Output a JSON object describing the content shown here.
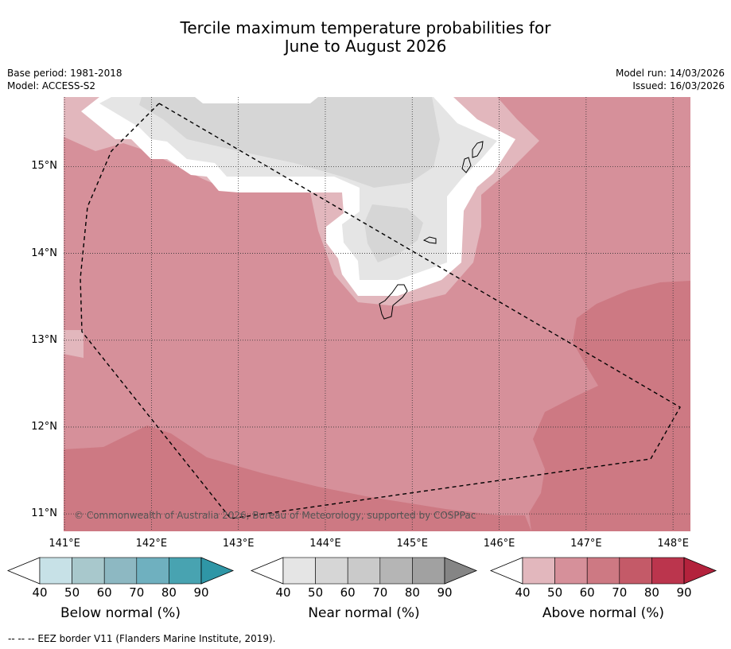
{
  "title": {
    "line1": "Tercile maximum temperature probabilities for",
    "line2": "June to August 2026"
  },
  "meta": {
    "base_period": "Base period: 1981-2018",
    "model": "Model: ACCESS-S2",
    "model_run": "Model run: 14/03/2026",
    "issued": "Issued: 16/03/2026"
  },
  "map": {
    "lon_ticks": [
      "141°E",
      "142°E",
      "143°E",
      "144°E",
      "145°E",
      "146°E",
      "147°E",
      "148°E"
    ],
    "lat_ticks": [
      "15°N",
      "14°N",
      "13°N",
      "12°N",
      "11°N"
    ],
    "lon_range": [
      140.99,
      148.2
    ],
    "lat_range": [
      10.8,
      15.8
    ],
    "copyright": "© Commonwealth of Australia 2026, Bureau of Meteorology, supported by COSPPac"
  },
  "colorbars": [
    {
      "title": "Below normal (%)",
      "ticks": [
        "40",
        "50",
        "60",
        "70",
        "80",
        "90"
      ],
      "colors": [
        "#ffffff",
        "#c7e1e7",
        "#a8c8cc",
        "#8db8c2",
        "#6fb0bf",
        "#48a3b1",
        "#2f96a6"
      ]
    },
    {
      "title": "Near normal (%)",
      "ticks": [
        "40",
        "50",
        "60",
        "70",
        "80",
        "90"
      ],
      "colors": [
        "#ffffff",
        "#e5e5e5",
        "#d6d6d6",
        "#cacaca",
        "#b5b5b5",
        "#a1a1a1",
        "#858585"
      ]
    },
    {
      "title": "Above normal (%)",
      "ticks": [
        "40",
        "50",
        "60",
        "70",
        "80",
        "90"
      ],
      "colors": [
        "#ffffff",
        "#e2b7bd",
        "#d6909a",
        "#cd7983",
        "#c45a68",
        "#bb354d",
        "#b3223c"
      ]
    }
  ],
  "footnote": "--  --  -- EEZ border V11 (Flanders Marine Institute, 2019)."
}
